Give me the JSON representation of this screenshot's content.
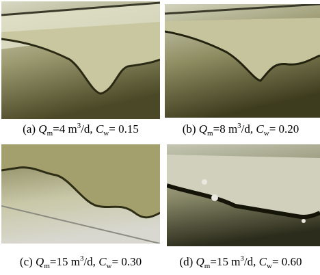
{
  "panels": [
    {
      "caption": [
        {
          "text": "(a) "
        },
        {
          "text": "Q",
          "style": "italic"
        },
        {
          "text": "m",
          "style": "sub"
        },
        {
          "text": "=4 m"
        },
        {
          "text": "3",
          "style": "sup"
        },
        {
          "text": "/d, "
        },
        {
          "text": "C",
          "style": "italic"
        },
        {
          "text": "w",
          "style": "sub"
        },
        {
          "text": "= 0.15"
        }
      ]
    },
    {
      "caption": [
        {
          "text": "(b) "
        },
        {
          "text": "Q",
          "style": "italic"
        },
        {
          "text": "m",
          "style": "sub"
        },
        {
          "text": "=8 m"
        },
        {
          "text": "3",
          "style": "sup"
        },
        {
          "text": "/d, "
        },
        {
          "text": "C",
          "style": "italic"
        },
        {
          "text": "w",
          "style": "sub"
        },
        {
          "text": "= 0.20"
        }
      ]
    },
    {
      "caption": [
        {
          "text": "(c) "
        },
        {
          "text": "Q",
          "style": "italic"
        },
        {
          "text": "m",
          "style": "sub"
        },
        {
          "text": "=15 m"
        },
        {
          "text": "3",
          "style": "sup"
        },
        {
          "text": "/d, "
        },
        {
          "text": "C",
          "style": "italic"
        },
        {
          "text": "w",
          "style": "sub"
        },
        {
          "text": "= 0.30"
        }
      ]
    },
    {
      "caption": [
        {
          "text": "(d) "
        },
        {
          "text": "Q",
          "style": "italic"
        },
        {
          "text": "m",
          "style": "sub"
        },
        {
          "text": "=15 m"
        },
        {
          "text": "3",
          "style": "sup"
        },
        {
          "text": "/d, "
        },
        {
          "text": "C",
          "style": "italic"
        },
        {
          "text": "w",
          "style": "sub"
        },
        {
          "text": "= 0.60"
        }
      ]
    }
  ]
}
